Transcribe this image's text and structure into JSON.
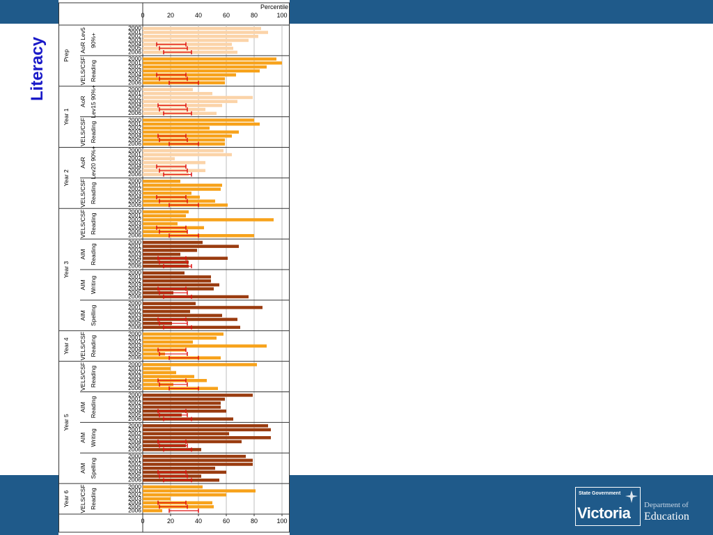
{
  "slide": {
    "side_title": "Literacy",
    "logo": {
      "state_government": "State Government",
      "victoria": "Victoria",
      "department_of": "Department of",
      "education": "Education"
    },
    "colors": {
      "band": "#1f5a8a",
      "title": "#1a1ac8",
      "aor": "#fbd3a8",
      "vels": "#f7a21b",
      "aim": "#9a3c10",
      "error": "#e01010"
    }
  },
  "chart_data": {
    "type": "bar",
    "orientation": "horizontal",
    "xlabel": "Percentile",
    "xlim": [
      0,
      100
    ],
    "xticks": [
      0,
      20,
      40,
      60,
      80,
      100
    ],
    "years": [
      "2000",
      "2001",
      "2002",
      "2003",
      "2004",
      "2005",
      "2006"
    ],
    "groups": [
      {
        "level": "Prep",
        "label1": "AoR Lev5",
        "label2": "90%+",
        "kind": "aor",
        "values": [
          85,
          90,
          83,
          76,
          64,
          65,
          68
        ],
        "error_bars": [
          [
            10,
            31
          ],
          [
            12,
            32
          ],
          [
            15,
            35
          ]
        ]
      },
      {
        "level": "",
        "label1": "VELS/CSF",
        "label2": "Reading",
        "kind": "vels",
        "values": [
          96,
          100,
          89,
          84,
          67,
          59,
          59
        ],
        "error_bars": [
          [
            10,
            31
          ],
          [
            12,
            32
          ],
          [
            19,
            40
          ]
        ]
      },
      {
        "level": "Year 1",
        "label1": "AoR",
        "label2": "Lev15 90%+",
        "kind": "aor",
        "values": [
          36,
          50,
          79,
          68,
          57,
          45,
          53
        ],
        "error_bars": [
          [
            11,
            31
          ],
          [
            12,
            32
          ],
          [
            15,
            35
          ]
        ]
      },
      {
        "level": "",
        "label1": "VELS/CSF",
        "label2": "Reading",
        "kind": "vels",
        "values": [
          80,
          84,
          48,
          69,
          64,
          59,
          59
        ],
        "error_bars": [
          [
            11,
            31
          ],
          [
            12,
            32
          ],
          [
            19,
            40
          ]
        ]
      },
      {
        "level": "Year 2",
        "label1": "AoR",
        "label2": "Lev20 90%+",
        "kind": "aor",
        "values": [
          58,
          64,
          23,
          45,
          31,
          45,
          33
        ],
        "error_bars": [
          [
            10,
            31
          ],
          [
            12,
            32
          ],
          [
            15,
            35
          ]
        ]
      },
      {
        "level": "",
        "label1": "VELS/CSF",
        "label2": "Reading",
        "kind": "vels",
        "values": [
          27,
          57,
          56,
          35,
          41,
          52,
          61
        ],
        "error_bars": [
          [
            10,
            31
          ],
          [
            12,
            32
          ],
          [
            19,
            40
          ]
        ]
      },
      {
        "level": "Year 3",
        "label1": "VELS/CSF",
        "label2": "Reading",
        "kind": "vels",
        "values": [
          33,
          31,
          94,
          25,
          44,
          32,
          80
        ],
        "error_bars": [
          [
            10,
            31
          ],
          [
            12,
            32
          ],
          [
            19,
            40
          ]
        ]
      },
      {
        "level": "",
        "label1": "AIM",
        "label2": "Reading",
        "kind": "aim",
        "values": [
          43,
          69,
          39,
          27,
          61,
          33,
          33
        ],
        "error_bars": [
          [
            11,
            31
          ],
          [
            12,
            32
          ],
          [
            15,
            35
          ]
        ]
      },
      {
        "level": "",
        "label1": "AIM",
        "label2": "Writing",
        "kind": "aim",
        "values": [
          30,
          49,
          49,
          55,
          51,
          22,
          76
        ],
        "error_bars": [
          [
            11,
            31
          ],
          [
            12,
            32
          ],
          [
            15,
            35
          ]
        ]
      },
      {
        "level": "",
        "label1": "AIM",
        "label2": "Spelling",
        "kind": "aim",
        "values": [
          38,
          86,
          34,
          57,
          68,
          21,
          70
        ],
        "error_bars": [
          [
            11,
            31
          ],
          [
            12,
            32
          ],
          [
            15,
            35
          ]
        ]
      },
      {
        "level": "Year 4",
        "label1": "VELS/CSF",
        "label2": "Reading",
        "kind": "vels",
        "values": [
          58,
          53,
          36,
          89,
          31,
          16,
          56
        ],
        "error_bars": [
          [
            11,
            31
          ],
          [
            12,
            32
          ],
          [
            19,
            40
          ]
        ]
      },
      {
        "level": "Year 5",
        "label1": "VELS/CSF",
        "label2": "Reading",
        "kind": "vels",
        "values": [
          82,
          20,
          24,
          37,
          46,
          22,
          54
        ],
        "error_bars": [
          [
            11,
            31
          ],
          [
            12,
            32
          ],
          [
            19,
            40
          ]
        ]
      },
      {
        "level": "",
        "label1": "AIM",
        "label2": "Reading",
        "kind": "aim",
        "values": [
          79,
          59,
          56,
          56,
          60,
          28,
          65
        ],
        "error_bars": [
          [
            11,
            31
          ],
          [
            12,
            32
          ],
          [
            15,
            35
          ]
        ]
      },
      {
        "level": "",
        "label1": "AIM",
        "label2": "Writing",
        "kind": "aim",
        "values": [
          90,
          92,
          62,
          92,
          71,
          31,
          42
        ],
        "error_bars": [
          [
            11,
            31
          ],
          [
            12,
            32
          ],
          [
            15,
            35
          ]
        ]
      },
      {
        "level": "",
        "label1": "AIM",
        "label2": "Spelling",
        "kind": "aim",
        "values": [
          74,
          79,
          79,
          52,
          60,
          42,
          55
        ],
        "error_bars": [
          [
            11,
            31
          ],
          [
            12,
            32
          ],
          [
            15,
            35
          ]
        ]
      },
      {
        "level": "Year 6",
        "label1": "VELS/CSF",
        "label2": "Reading",
        "kind": "vels",
        "values": [
          43,
          81,
          60,
          20,
          50,
          51,
          14
        ],
        "error_bars": [
          [
            11,
            31
          ],
          [
            12,
            32
          ],
          [
            19,
            40
          ]
        ]
      }
    ]
  }
}
